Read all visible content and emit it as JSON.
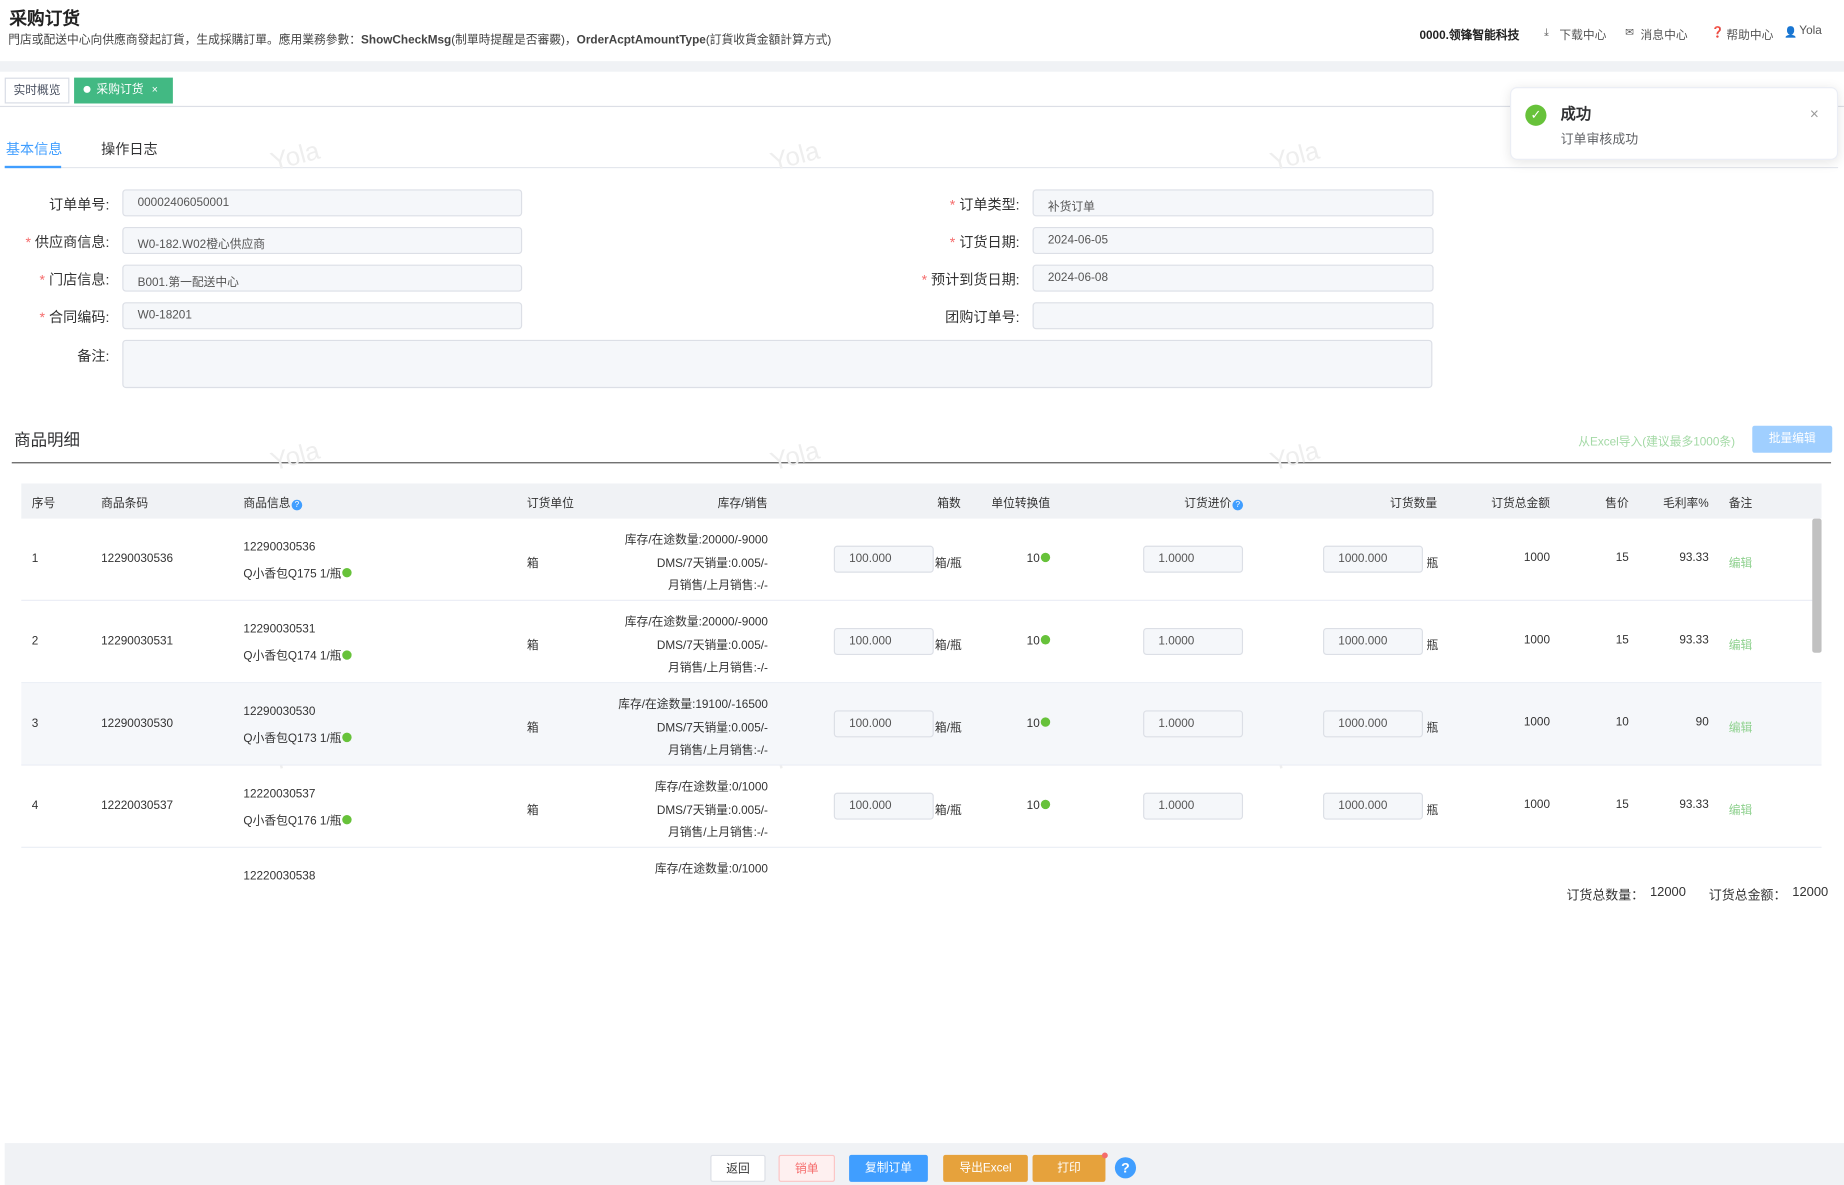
{
  "header": {
    "title": "采购订货",
    "description": [
      "門店或配送中心向供應商發起訂貨，生成採購訂單。應用業務參數：",
      "ShowCheckMsg",
      "(制單時提醒是否審覈)，",
      "OrderAcptAmountType",
      "(訂貨收貨金額計算方式)"
    ],
    "company": "0000.领锋智能科技",
    "links": [
      "下载中心",
      "消息中心",
      "帮助中心",
      "Yola"
    ]
  },
  "tabs": [
    "实时概览",
    "采购订货"
  ],
  "toast": {
    "title": "成功",
    "message": "订单审核成功"
  },
  "sub_tabs": [
    "基本信息",
    "操作日志"
  ],
  "watermark": "Yola",
  "form": {
    "left": [
      {
        "label": "订单单号:",
        "value": "00002406050001"
      },
      {
        "mark": "*",
        "label": "供应商信息:",
        "value": "W0-182.W02橙心供应商"
      },
      {
        "mark": "*",
        "label": "门店信息:",
        "value": "B001.第一配送中心"
      },
      {
        "mark": "*",
        "label": "合同编码:",
        "value": "W0-18201"
      }
    ],
    "right": [
      {
        "mark": "*",
        "label": "订单类型:",
        "value": "补货订单"
      },
      {
        "mark": "*",
        "label": "订货日期:",
        "value": "2024-06-05"
      },
      {
        "mark": "*",
        "label": "预计到货日期:",
        "value": "2024-06-08"
      },
      {
        "label": "团购订单号:"
      }
    ],
    "remark_label": "备注:"
  },
  "detail": {
    "title": "商品明细",
    "import_link": "从Excel导入(建议最多1000条)",
    "batch_button": "批量编辑",
    "columns": [
      "序号",
      "商品条码",
      "商品信息",
      "订货单位",
      "库存/销售",
      "箱数",
      "单位转换值",
      "订货进价",
      "订货数量",
      "订货总金额",
      "售价",
      "毛利率%",
      "备注"
    ],
    "rows": [
      {
        "no": "1",
        "code": "12290030536",
        "info": [
          "12290030536",
          "Q小香包Q175 1/瓶"
        ],
        "unit": "箱",
        "stock": [
          "库存/在途数量:20000/-9000",
          "DMS/7天销量:0.005/-",
          "月销售/上月销售:-/-"
        ],
        "boxes": "100.000",
        "box_unit": "箱/瓶",
        "conv": "10",
        "price": "1.0000",
        "qty": "1000.000",
        "qty_unit": "瓶",
        "total": "1000",
        "sale": "15",
        "margin": "93.33",
        "remark": "编辑"
      },
      {
        "no": "2",
        "code": "12290030531",
        "info": [
          "12290030531",
          "Q小香包Q174 1/瓶"
        ],
        "unit": "箱",
        "stock": [
          "库存/在途数量:20000/-9000",
          "DMS/7天销量:0.005/-",
          "月销售/上月销售:-/-"
        ],
        "boxes": "100.000",
        "box_unit": "箱/瓶",
        "conv": "10",
        "price": "1.0000",
        "qty": "1000.000",
        "qty_unit": "瓶",
        "total": "1000",
        "sale": "15",
        "margin": "93.33",
        "remark": "编辑"
      },
      {
        "no": "3",
        "code": "12290030530",
        "info": [
          "12290030530",
          "Q小香包Q173 1/瓶"
        ],
        "unit": "箱",
        "stock": [
          "库存/在途数量:19100/-16500",
          "DMS/7天销量:0.005/-",
          "月销售/上月销售:-/-"
        ],
        "boxes": "100.000",
        "box_unit": "箱/瓶",
        "conv": "10",
        "price": "1.0000",
        "qty": "1000.000",
        "qty_unit": "瓶",
        "total": "1000",
        "sale": "10",
        "margin": "90",
        "remark": "编辑"
      },
      {
        "no": "4",
        "code": "12220030537",
        "info": [
          "12220030537",
          "Q小香包Q176 1/瓶"
        ],
        "unit": "箱",
        "stock": [
          "库存/在途数量:0/1000",
          "DMS/7天销量:0.005/-",
          "月销售/上月销售:-/-"
        ],
        "boxes": "100.000",
        "box_unit": "箱/瓶",
        "conv": "10",
        "price": "1.0000",
        "qty": "1000.000",
        "qty_unit": "瓶",
        "total": "1000",
        "sale": "15",
        "margin": "93.33",
        "remark": "编辑"
      },
      {
        "info": [
          "12220030538"
        ],
        "stock": [
          "库存/在途数量:0/1000"
        ]
      }
    ],
    "totals": [
      {
        "label": "订货总数量：",
        "value": "12000"
      },
      {
        "label": "订货总金额：",
        "value": "12000"
      }
    ]
  },
  "buttons": [
    "返回",
    "销单",
    "复制订单",
    "导出Excel",
    "打印"
  ]
}
